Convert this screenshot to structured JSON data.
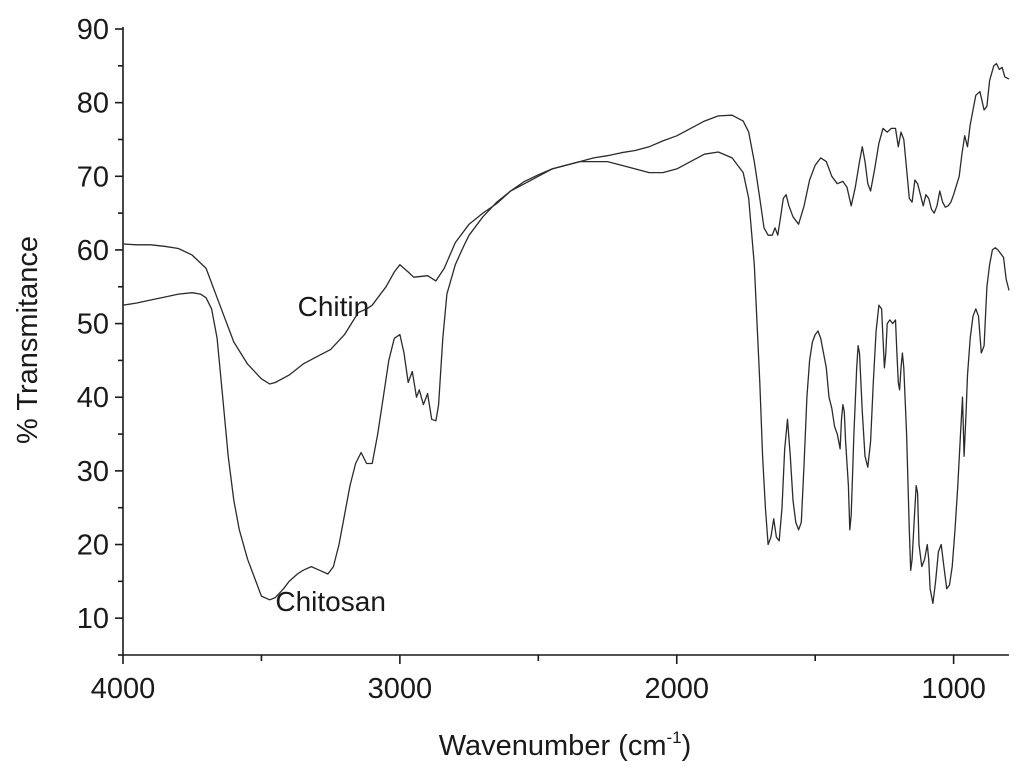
{
  "chart_data": {
    "type": "line",
    "title": "",
    "xlabel": "Wavenumber (cm",
    "xlabel_sup": "-1",
    "xlabel_close": ")",
    "ylabel": "% Transmitance",
    "xlim": [
      4000,
      800
    ],
    "ylim": [
      5,
      90
    ],
    "x_reversed": true,
    "grid": false,
    "xticks": [
      4000,
      3000,
      2000,
      1000
    ],
    "xtick_labels": [
      "4000",
      "3000",
      "2000",
      "1000"
    ],
    "xminor": [
      3500,
      2500,
      1500
    ],
    "yticks": [
      10,
      20,
      30,
      40,
      50,
      60,
      70,
      80,
      90
    ],
    "ytick_labels": [
      "10",
      "20",
      "30",
      "40",
      "50",
      "60",
      "70",
      "80",
      "90"
    ],
    "line_color": "#2b2b2b",
    "annotations": [
      {
        "text": "Chitin",
        "x": 3240,
        "y": 51,
        "series": "chitin"
      },
      {
        "text": "Chitosan",
        "x": 3250,
        "y": 11,
        "series": "chitosan"
      }
    ],
    "series": [
      {
        "id": "chitin",
        "points": [
          [
            4000,
            60.8
          ],
          [
            3950,
            60.7
          ],
          [
            3900,
            60.7
          ],
          [
            3850,
            60.5
          ],
          [
            3800,
            60.2
          ],
          [
            3750,
            59.3
          ],
          [
            3700,
            57.5
          ],
          [
            3650,
            52.5
          ],
          [
            3600,
            47.5
          ],
          [
            3550,
            44.5
          ],
          [
            3500,
            42.5
          ],
          [
            3470,
            41.8
          ],
          [
            3450,
            42
          ],
          [
            3400,
            43
          ],
          [
            3350,
            44.5
          ],
          [
            3300,
            45.5
          ],
          [
            3250,
            46.5
          ],
          [
            3200,
            48.5
          ],
          [
            3150,
            51.5
          ],
          [
            3120,
            52
          ],
          [
            3100,
            52.5
          ],
          [
            3050,
            55
          ],
          [
            3020,
            57
          ],
          [
            3000,
            58
          ],
          [
            2970,
            57
          ],
          [
            2950,
            56.3
          ],
          [
            2900,
            56.5
          ],
          [
            2870,
            55.8
          ],
          [
            2840,
            57.5
          ],
          [
            2800,
            61
          ],
          [
            2750,
            63.5
          ],
          [
            2700,
            65
          ],
          [
            2650,
            66.3
          ],
          [
            2600,
            68
          ],
          [
            2550,
            69
          ],
          [
            2500,
            70
          ],
          [
            2450,
            71
          ],
          [
            2400,
            71.5
          ],
          [
            2350,
            72
          ],
          [
            2300,
            72.5
          ],
          [
            2250,
            72.8
          ],
          [
            2200,
            73.2
          ],
          [
            2150,
            73.5
          ],
          [
            2100,
            74
          ],
          [
            2050,
            74.8
          ],
          [
            2000,
            75.5
          ],
          [
            1950,
            76.5
          ],
          [
            1900,
            77.5
          ],
          [
            1850,
            78.2
          ],
          [
            1800,
            78.3
          ],
          [
            1760,
            77.5
          ],
          [
            1740,
            76
          ],
          [
            1720,
            72
          ],
          [
            1700,
            67
          ],
          [
            1685,
            63
          ],
          [
            1670,
            62
          ],
          [
            1655,
            62
          ],
          [
            1645,
            63
          ],
          [
            1635,
            62
          ],
          [
            1625,
            64.5
          ],
          [
            1615,
            67
          ],
          [
            1605,
            67.5
          ],
          [
            1595,
            66
          ],
          [
            1580,
            64.5
          ],
          [
            1560,
            63.5
          ],
          [
            1540,
            66
          ],
          [
            1520,
            69.5
          ],
          [
            1500,
            71.5
          ],
          [
            1480,
            72.5
          ],
          [
            1460,
            72
          ],
          [
            1440,
            70
          ],
          [
            1420,
            69
          ],
          [
            1400,
            69.3
          ],
          [
            1385,
            68.5
          ],
          [
            1370,
            66
          ],
          [
            1355,
            68.5
          ],
          [
            1340,
            72
          ],
          [
            1330,
            74
          ],
          [
            1320,
            72
          ],
          [
            1310,
            69
          ],
          [
            1300,
            68
          ],
          [
            1285,
            71
          ],
          [
            1270,
            74.5
          ],
          [
            1255,
            76.5
          ],
          [
            1240,
            76
          ],
          [
            1225,
            76.5
          ],
          [
            1210,
            76.5
          ],
          [
            1200,
            74
          ],
          [
            1190,
            76
          ],
          [
            1180,
            75
          ],
          [
            1170,
            71
          ],
          [
            1160,
            67
          ],
          [
            1150,
            66.5
          ],
          [
            1140,
            69.5
          ],
          [
            1130,
            69
          ],
          [
            1120,
            67.5
          ],
          [
            1110,
            66
          ],
          [
            1100,
            67.5
          ],
          [
            1090,
            67
          ],
          [
            1080,
            65.5
          ],
          [
            1070,
            65
          ],
          [
            1060,
            66
          ],
          [
            1050,
            68
          ],
          [
            1040,
            66.5
          ],
          [
            1030,
            65.8
          ],
          [
            1020,
            66
          ],
          [
            1010,
            66.5
          ],
          [
            1000,
            67.5
          ],
          [
            980,
            70
          ],
          [
            970,
            73
          ],
          [
            960,
            75.5
          ],
          [
            950,
            74
          ],
          [
            940,
            77
          ],
          [
            920,
            81
          ],
          [
            905,
            81.5
          ],
          [
            890,
            79
          ],
          [
            880,
            79.5
          ],
          [
            870,
            83
          ],
          [
            855,
            85
          ],
          [
            845,
            85.3
          ],
          [
            835,
            84.5
          ],
          [
            825,
            84.8
          ],
          [
            815,
            83.5
          ],
          [
            800,
            83.2
          ]
        ]
      },
      {
        "id": "chitosan",
        "points": [
          [
            4000,
            52.5
          ],
          [
            3950,
            52.8
          ],
          [
            3900,
            53.2
          ],
          [
            3850,
            53.6
          ],
          [
            3800,
            54
          ],
          [
            3750,
            54.2
          ],
          [
            3720,
            54
          ],
          [
            3700,
            53.5
          ],
          [
            3680,
            52
          ],
          [
            3660,
            48
          ],
          [
            3640,
            40
          ],
          [
            3620,
            32
          ],
          [
            3600,
            26
          ],
          [
            3580,
            22
          ],
          [
            3550,
            18
          ],
          [
            3520,
            15
          ],
          [
            3500,
            13
          ],
          [
            3470,
            12.5
          ],
          [
            3450,
            12.8
          ],
          [
            3420,
            14
          ],
          [
            3400,
            15
          ],
          [
            3370,
            16
          ],
          [
            3350,
            16.5
          ],
          [
            3320,
            17
          ],
          [
            3290,
            16.5
          ],
          [
            3260,
            16
          ],
          [
            3240,
            17
          ],
          [
            3220,
            20
          ],
          [
            3200,
            24
          ],
          [
            3180,
            28
          ],
          [
            3160,
            31
          ],
          [
            3140,
            32.5
          ],
          [
            3120,
            31
          ],
          [
            3100,
            31
          ],
          [
            3080,
            35
          ],
          [
            3060,
            40
          ],
          [
            3040,
            45
          ],
          [
            3020,
            48
          ],
          [
            3000,
            48.5
          ],
          [
            2985,
            46
          ],
          [
            2970,
            42
          ],
          [
            2955,
            43.5
          ],
          [
            2940,
            40
          ],
          [
            2930,
            41
          ],
          [
            2915,
            39
          ],
          [
            2900,
            40.5
          ],
          [
            2885,
            37
          ],
          [
            2870,
            36.8
          ],
          [
            2860,
            39
          ],
          [
            2845,
            48
          ],
          [
            2830,
            54
          ],
          [
            2800,
            58
          ],
          [
            2770,
            60.5
          ],
          [
            2750,
            62
          ],
          [
            2700,
            64.5
          ],
          [
            2650,
            66.5
          ],
          [
            2600,
            68
          ],
          [
            2550,
            69.3
          ],
          [
            2500,
            70.2
          ],
          [
            2450,
            71
          ],
          [
            2400,
            71.5
          ],
          [
            2350,
            72
          ],
          [
            2300,
            72
          ],
          [
            2250,
            72
          ],
          [
            2200,
            71.5
          ],
          [
            2150,
            71
          ],
          [
            2100,
            70.5
          ],
          [
            2050,
            70.5
          ],
          [
            2000,
            71
          ],
          [
            1950,
            72
          ],
          [
            1900,
            73
          ],
          [
            1850,
            73.3
          ],
          [
            1800,
            72.5
          ],
          [
            1760,
            70.5
          ],
          [
            1740,
            67
          ],
          [
            1720,
            58
          ],
          [
            1700,
            42
          ],
          [
            1690,
            32
          ],
          [
            1680,
            25
          ],
          [
            1670,
            20
          ],
          [
            1660,
            21
          ],
          [
            1650,
            23.5
          ],
          [
            1640,
            21
          ],
          [
            1630,
            20.5
          ],
          [
            1620,
            25
          ],
          [
            1610,
            33
          ],
          [
            1600,
            37
          ],
          [
            1590,
            32
          ],
          [
            1580,
            26
          ],
          [
            1570,
            23
          ],
          [
            1560,
            22
          ],
          [
            1550,
            23
          ],
          [
            1540,
            31
          ],
          [
            1530,
            40
          ],
          [
            1520,
            45
          ],
          [
            1510,
            47.5
          ],
          [
            1500,
            48.5
          ],
          [
            1490,
            49
          ],
          [
            1480,
            48
          ],
          [
            1470,
            46
          ],
          [
            1460,
            44
          ],
          [
            1450,
            40
          ],
          [
            1440,
            38.5
          ],
          [
            1430,
            36
          ],
          [
            1420,
            35
          ],
          [
            1410,
            33
          ],
          [
            1405,
            37
          ],
          [
            1400,
            39
          ],
          [
            1395,
            38
          ],
          [
            1390,
            34
          ],
          [
            1380,
            28
          ],
          [
            1375,
            22
          ],
          [
            1370,
            24
          ],
          [
            1360,
            35
          ],
          [
            1350,
            44
          ],
          [
            1345,
            47
          ],
          [
            1340,
            46
          ],
          [
            1330,
            38
          ],
          [
            1320,
            32
          ],
          [
            1310,
            30.5
          ],
          [
            1300,
            34
          ],
          [
            1290,
            42
          ],
          [
            1280,
            49
          ],
          [
            1270,
            52.5
          ],
          [
            1260,
            52
          ],
          [
            1255,
            48
          ],
          [
            1250,
            44
          ],
          [
            1245,
            46
          ],
          [
            1240,
            50
          ],
          [
            1230,
            50.5
          ],
          [
            1220,
            50
          ],
          [
            1210,
            50.5
          ],
          [
            1205,
            46
          ],
          [
            1200,
            42
          ],
          [
            1195,
            41
          ],
          [
            1190,
            44
          ],
          [
            1185,
            46
          ],
          [
            1180,
            44
          ],
          [
            1170,
            35
          ],
          [
            1160,
            22
          ],
          [
            1155,
            16.5
          ],
          [
            1150,
            18
          ],
          [
            1140,
            25
          ],
          [
            1135,
            28
          ],
          [
            1130,
            27
          ],
          [
            1125,
            20
          ],
          [
            1115,
            17
          ],
          [
            1105,
            18
          ],
          [
            1095,
            20
          ],
          [
            1090,
            18
          ],
          [
            1085,
            14
          ],
          [
            1075,
            12
          ],
          [
            1065,
            15
          ],
          [
            1055,
            19
          ],
          [
            1045,
            20
          ],
          [
            1035,
            17
          ],
          [
            1025,
            14
          ],
          [
            1015,
            14.5
          ],
          [
            1005,
            17
          ],
          [
            995,
            22
          ],
          [
            985,
            28
          ],
          [
            975,
            35
          ],
          [
            968,
            40
          ],
          [
            962,
            32
          ],
          [
            955,
            38
          ],
          [
            950,
            43
          ],
          [
            940,
            48
          ],
          [
            930,
            51
          ],
          [
            920,
            52
          ],
          [
            910,
            51
          ],
          [
            900,
            46
          ],
          [
            890,
            47
          ],
          [
            880,
            55
          ],
          [
            870,
            58
          ],
          [
            860,
            60
          ],
          [
            850,
            60.3
          ],
          [
            840,
            60
          ],
          [
            830,
            59.5
          ],
          [
            820,
            59
          ],
          [
            810,
            56
          ],
          [
            800,
            54.5
          ]
        ]
      }
    ]
  }
}
